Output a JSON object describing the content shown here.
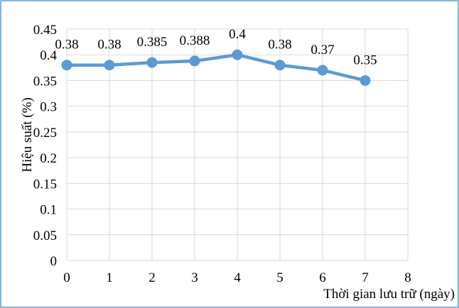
{
  "chart_data": {
    "type": "line",
    "title": "",
    "xlabel": "Thời gian lưu trữ (ngày)",
    "ylabel": "Hiệu suất (%)",
    "xlim": [
      0,
      8
    ],
    "ylim": [
      0,
      0.45
    ],
    "x_ticks": [
      "0",
      "1",
      "2",
      "3",
      "4",
      "5",
      "6",
      "7",
      "8"
    ],
    "y_ticks": [
      "0",
      "0.05",
      "0.1",
      "0.15",
      "0.2",
      "0.25",
      "0.3",
      "0.35",
      "0.4",
      "0.45"
    ],
    "grid": true,
    "legend": "none",
    "color": "#5b9bd5",
    "series": [
      {
        "x": [
          0,
          1,
          2,
          3,
          4,
          5,
          6,
          7
        ],
        "values": [
          0.38,
          0.38,
          0.385,
          0.388,
          0.4,
          0.38,
          0.37,
          0.35
        ],
        "labels": [
          "0.38",
          "0.38",
          "0.385",
          "0.388",
          "0.4",
          "0.38",
          "0.37",
          "0.35"
        ]
      }
    ]
  }
}
